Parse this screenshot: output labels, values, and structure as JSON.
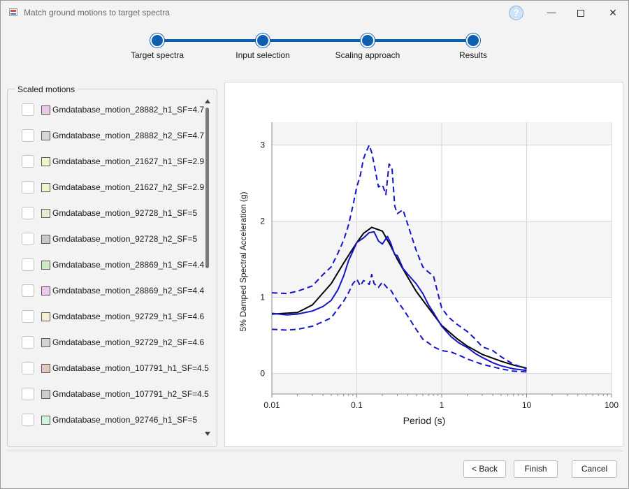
{
  "window": {
    "title": "Match ground motions to target spectra",
    "help_icon": "help-icon",
    "help_glyph": "?",
    "min_glyph": "—",
    "close_glyph": "✕"
  },
  "wizard": {
    "steps": [
      "Target spectra",
      "Input selection",
      "Scaling approach",
      "Results"
    ],
    "current_step": 4
  },
  "motions": {
    "group_title": "Scaled motions",
    "items": [
      {
        "label": "Gmdatabase_motion_28882_h1_SF=4.7",
        "color": "#e8c8e4",
        "checked": false
      },
      {
        "label": "Gmdatabase_motion_28882_h2_SF=4.7",
        "color": "#d8d4d8",
        "checked": false
      },
      {
        "label": "Gmdatabase_motion_21627_h1_SF=2.9",
        "color": "#f0f4c8",
        "checked": false
      },
      {
        "label": "Gmdatabase_motion_21627_h2_SF=2.9",
        "color": "#f0f4c8",
        "checked": false
      },
      {
        "label": "Gmdatabase_motion_92728_h1_SF=5",
        "color": "#e8ecd4",
        "checked": false
      },
      {
        "label": "Gmdatabase_motion_92728_h2_SF=5",
        "color": "#c8c8c8",
        "checked": false
      },
      {
        "label": "Gmdatabase_motion_28869_h1_SF=4.4",
        "color": "#cce8c4",
        "checked": false
      },
      {
        "label": "Gmdatabase_motion_28869_h2_SF=4.4",
        "color": "#f0c8ec",
        "checked": false
      },
      {
        "label": "Gmdatabase_motion_92729_h1_SF=4.6",
        "color": "#f4f0d0",
        "checked": false
      },
      {
        "label": "Gmdatabase_motion_92729_h2_SF=4.6",
        "color": "#d4d4d4",
        "checked": false
      },
      {
        "label": "Gmdatabase_motion_107791_h1_SF=4.5",
        "color": "#e0c8c0",
        "checked": false
      },
      {
        "label": "Gmdatabase_motion_107791_h2_SF=4.5",
        "color": "#cccccc",
        "checked": false
      },
      {
        "label": "Gmdatabase_motion_92746_h1_SF=5",
        "color": "#d0f4dc",
        "checked": false
      }
    ]
  },
  "buttons": {
    "back": "< Back",
    "finish": "Finish",
    "cancel": "Cancel"
  },
  "chart_data": {
    "type": "line",
    "xlabel": "Period (s)",
    "ylabel": "5% Damped Spectral Acceleration (g)",
    "xscale": "log",
    "xlim": [
      0.01,
      100
    ],
    "ylim": [
      -0.27,
      3.3
    ],
    "xticks": [
      "0.01",
      "0.1",
      "1",
      "10",
      "100"
    ],
    "yticks": [
      "0",
      "1",
      "2",
      "3"
    ],
    "grid": true,
    "colors": {
      "target": "#000000",
      "median": "#1414c8",
      "bounds": "#1414c8"
    },
    "series": [
      {
        "style": "solid-black",
        "x": [
          0.01,
          0.02,
          0.03,
          0.05,
          0.07,
          0.1,
          0.12,
          0.15,
          0.2,
          0.25,
          0.3,
          0.4,
          0.5,
          0.7,
          1,
          1.5,
          2,
          3,
          5,
          7,
          10
        ],
        "y": [
          0.78,
          0.8,
          0.9,
          1.18,
          1.45,
          1.72,
          1.84,
          1.92,
          1.87,
          1.68,
          1.5,
          1.26,
          1.08,
          0.86,
          0.63,
          0.46,
          0.36,
          0.25,
          0.16,
          0.11,
          0.07
        ]
      },
      {
        "style": "solid-blue",
        "x": [
          0.01,
          0.015,
          0.02,
          0.03,
          0.04,
          0.05,
          0.06,
          0.07,
          0.08,
          0.1,
          0.12,
          0.14,
          0.16,
          0.18,
          0.2,
          0.23,
          0.25,
          0.28,
          0.3,
          0.35,
          0.4,
          0.5,
          0.6,
          0.7,
          0.8,
          1,
          1.3,
          1.6,
          2,
          2.5,
          3,
          4,
          5,
          7,
          10
        ],
        "y": [
          0.79,
          0.77,
          0.78,
          0.82,
          0.88,
          0.96,
          1.1,
          1.28,
          1.48,
          1.72,
          1.78,
          1.85,
          1.86,
          1.74,
          1.7,
          1.8,
          1.72,
          1.56,
          1.55,
          1.38,
          1.3,
          1.18,
          1.05,
          0.9,
          0.8,
          0.62,
          0.48,
          0.4,
          0.34,
          0.26,
          0.21,
          0.14,
          0.1,
          0.06,
          0.04
        ]
      },
      {
        "style": "dashed-blue",
        "x": [
          0.01,
          0.015,
          0.02,
          0.03,
          0.04,
          0.05,
          0.06,
          0.07,
          0.08,
          0.09,
          0.1,
          0.11,
          0.12,
          0.13,
          0.14,
          0.15,
          0.16,
          0.18,
          0.2,
          0.22,
          0.24,
          0.26,
          0.28,
          0.3,
          0.35,
          0.4,
          0.5,
          0.6,
          0.7,
          0.8,
          1,
          1.2,
          1.5,
          2,
          2.5,
          3,
          4,
          5,
          7,
          10
        ],
        "y": [
          1.06,
          1.05,
          1.08,
          1.15,
          1.3,
          1.4,
          1.58,
          1.75,
          1.95,
          2.2,
          2.45,
          2.6,
          2.82,
          2.92,
          3.0,
          2.9,
          2.75,
          2.45,
          2.48,
          2.35,
          2.75,
          2.7,
          2.2,
          2.1,
          2.15,
          1.95,
          1.62,
          1.4,
          1.33,
          1.28,
          0.86,
          0.74,
          0.65,
          0.55,
          0.45,
          0.35,
          0.3,
          0.22,
          0.12,
          0.06
        ]
      },
      {
        "style": "dashed-blue",
        "x": [
          0.01,
          0.015,
          0.02,
          0.03,
          0.04,
          0.05,
          0.06,
          0.07,
          0.08,
          0.09,
          0.1,
          0.11,
          0.12,
          0.13,
          0.14,
          0.15,
          0.16,
          0.18,
          0.2,
          0.23,
          0.25,
          0.3,
          0.35,
          0.4,
          0.5,
          0.6,
          0.7,
          0.8,
          1,
          1.3,
          1.6,
          2,
          3,
          5,
          7,
          10
        ],
        "y": [
          0.58,
          0.57,
          0.58,
          0.62,
          0.68,
          0.73,
          0.85,
          0.95,
          1.06,
          1.18,
          1.24,
          1.15,
          1.22,
          1.2,
          1.17,
          1.3,
          1.18,
          1.13,
          1.2,
          1.12,
          1.1,
          0.95,
          0.85,
          0.75,
          0.58,
          0.45,
          0.4,
          0.35,
          0.3,
          0.28,
          0.24,
          0.19,
          0.12,
          0.06,
          0.03,
          0.02
        ]
      }
    ]
  }
}
